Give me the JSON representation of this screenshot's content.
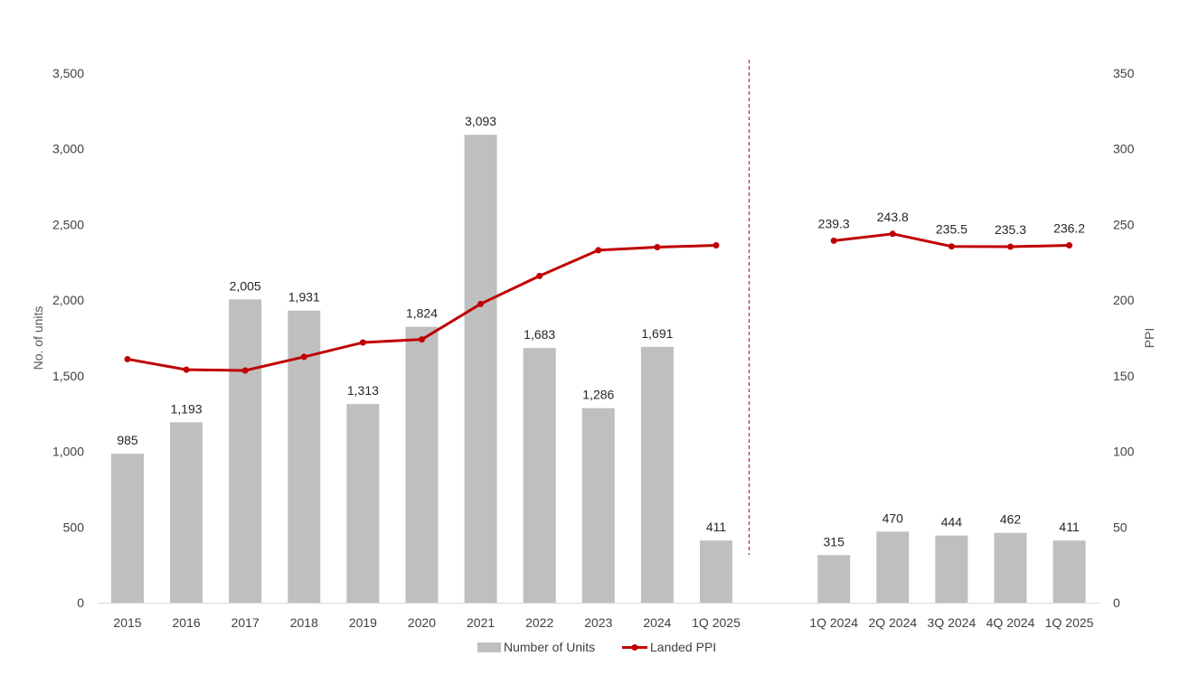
{
  "chart_data": {
    "type": "bar+line",
    "categories": [
      "2015",
      "2016",
      "2017",
      "2018",
      "2019",
      "2020",
      "2021",
      "2022",
      "2023",
      "2024",
      "1Q 2025",
      "",
      "1Q 2024",
      "2Q 2024",
      "3Q 2024",
      "4Q 2024",
      "1Q 2025"
    ],
    "series": [
      {
        "name": "Number of Units",
        "kind": "bar",
        "axis": "left",
        "color": "#bfbfbf",
        "values": [
          985,
          1193,
          2005,
          1931,
          1313,
          1824,
          3093,
          1683,
          1286,
          1691,
          411,
          null,
          315,
          470,
          444,
          462,
          411
        ],
        "labels": [
          "985",
          "1,193",
          "2,005",
          "1,931",
          "1,313",
          "1,824",
          "3,093",
          "1,683",
          "1,286",
          "1,691",
          "411",
          "",
          "315",
          "470",
          "444",
          "462",
          "411"
        ]
      },
      {
        "name": "Landed PPI",
        "kind": "line",
        "axis": "right",
        "color": "#c00000",
        "values": [
          161,
          154,
          153.5,
          162.5,
          172,
          174,
          197.5,
          216,
          233,
          235,
          236.2,
          null,
          239.3,
          243.8,
          235.5,
          235.3,
          236.2
        ],
        "labels": [
          "",
          "",
          "",
          "",
          "",
          "",
          "",
          "",
          "",
          "",
          "",
          "",
          "239.3",
          "243.8",
          "235.5",
          "235.3",
          "236.2"
        ]
      }
    ],
    "y_left": {
      "label": "No. of units",
      "ylim": [
        0,
        3500
      ],
      "ticks": [
        0,
        500,
        1000,
        1500,
        2000,
        2500,
        3000,
        3500
      ],
      "tick_labels": [
        "0",
        "500",
        "1,000",
        "1,500",
        "2,000",
        "2,500",
        "3,000",
        "3,500"
      ]
    },
    "y_right": {
      "label": "PPI",
      "ylim": [
        0,
        350
      ],
      "ticks": [
        0,
        50,
        100,
        150,
        200,
        250,
        300,
        350
      ],
      "tick_labels": [
        "0",
        "50",
        "100",
        "150",
        "200",
        "250",
        "300",
        "350"
      ]
    },
    "legend": {
      "position": "bottom",
      "items": [
        "Number of Units",
        "Landed PPI"
      ]
    },
    "annotations": [
      "dashed vertical separator between annual and quarterly data"
    ],
    "separator_color": "#c00000",
    "grid": false
  }
}
